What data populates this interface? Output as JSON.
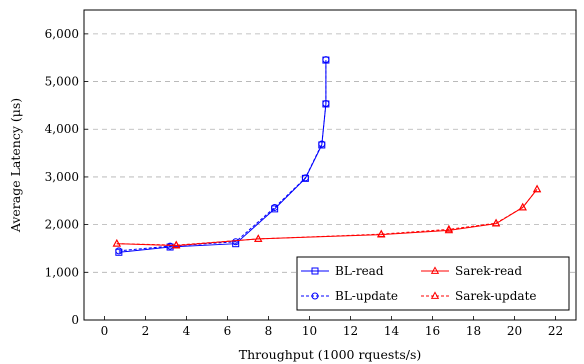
{
  "chart_data": {
    "type": "line",
    "xlabel": "Throughput (1000 rquests/s)",
    "ylabel": "Average Latency (μs)",
    "xlim": [
      -1,
      23
    ],
    "ylim": [
      0,
      6500
    ],
    "x_ticks": [
      0,
      2,
      4,
      6,
      8,
      10,
      12,
      14,
      16,
      18,
      20,
      22
    ],
    "y_ticks": [
      0,
      1000,
      2000,
      3000,
      4000,
      5000,
      6000
    ],
    "x_tick_labels": [
      "0",
      "2",
      "4",
      "6",
      "8",
      "10",
      "12",
      "14",
      "16",
      "18",
      "20",
      "22"
    ],
    "y_tick_labels": [
      "0",
      "1,000",
      "2,000",
      "3,000",
      "4,000",
      "5,000",
      "6,000"
    ],
    "grid": "horizontal dashed",
    "legend_position": "bottom-right",
    "series": [
      {
        "name": "BL-read",
        "color": "#0000ff",
        "marker": "square",
        "line_style": "solid",
        "x": [
          0.7,
          3.2,
          6.4,
          8.3,
          9.8,
          10.6,
          10.8,
          10.8
        ],
        "y": [
          1420,
          1530,
          1600,
          2330,
          2970,
          3670,
          4530,
          5450
        ]
      },
      {
        "name": "BL-update",
        "color": "#0000ff",
        "marker": "circle",
        "line_style": "dashed",
        "x": [
          0.7,
          3.2,
          6.4,
          8.3,
          9.8,
          10.6,
          10.8,
          10.8
        ],
        "y": [
          1450,
          1550,
          1640,
          2360,
          2980,
          3690,
          4540,
          5460
        ]
      },
      {
        "name": "Sarek-read",
        "color": "#ff0000",
        "marker": "triangle",
        "line_style": "solid",
        "x": [
          0.6,
          3.5,
          7.5,
          13.5,
          16.8,
          19.1,
          20.4,
          21.1
        ],
        "y": [
          1600,
          1560,
          1700,
          1790,
          1880,
          2020,
          2360,
          2740
        ]
      },
      {
        "name": "Sarek-update",
        "color": "#ff0000",
        "marker": "triangle",
        "line_style": "dashed",
        "x": [
          0.6,
          3.5,
          7.5,
          13.5,
          16.8,
          19.1,
          20.4,
          21.1
        ],
        "y": [
          1600,
          1570,
          1700,
          1800,
          1900,
          2030,
          2360,
          2740
        ]
      }
    ]
  }
}
